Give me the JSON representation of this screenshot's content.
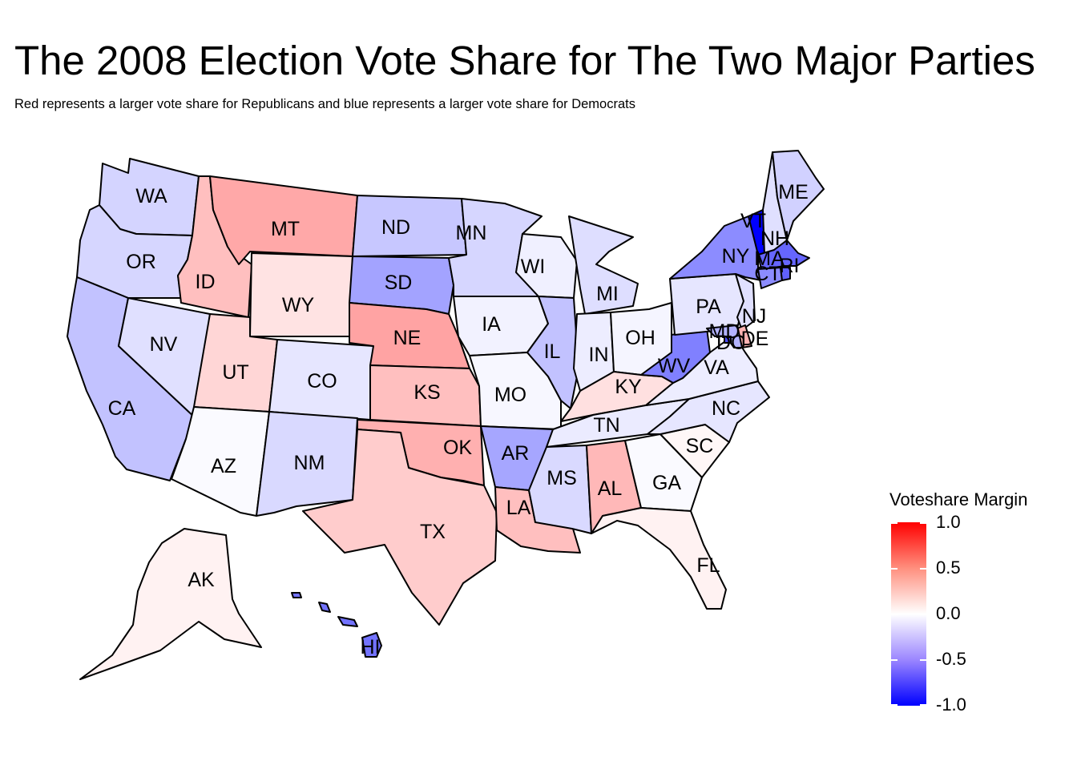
{
  "title": "The 2008 Election Vote Share for The Two Major Parties",
  "subtitle": "Red represents a larger vote share for Republicans and blue represents a larger vote share for Democrats",
  "legend": {
    "title": "Voteshare Margin",
    "ticks": [
      "1.0",
      "0.5",
      "0.0",
      "-0.5",
      "-1.0"
    ],
    "colors": {
      "high": "#ff0000",
      "mid": "#ffffff",
      "low": "#0000ff"
    }
  },
  "states": [
    {
      "abbr": "WA",
      "margin": -0.17
    },
    {
      "abbr": "OR",
      "margin": -0.16
    },
    {
      "abbr": "CA",
      "margin": -0.24
    },
    {
      "abbr": "NV",
      "margin": -0.12
    },
    {
      "abbr": "ID",
      "margin": 0.25
    },
    {
      "abbr": "MT",
      "margin": 0.34
    },
    {
      "abbr": "WY",
      "margin": 0.11
    },
    {
      "abbr": "UT",
      "margin": 0.16
    },
    {
      "abbr": "AZ",
      "margin": -0.02
    },
    {
      "abbr": "CO",
      "margin": -0.1
    },
    {
      "abbr": "NM",
      "margin": -0.15
    },
    {
      "abbr": "ND",
      "margin": -0.22
    },
    {
      "abbr": "SD",
      "margin": -0.36
    },
    {
      "abbr": "NE",
      "margin": 0.36
    },
    {
      "abbr": "KS",
      "margin": 0.25
    },
    {
      "abbr": "OK",
      "margin": 0.31
    },
    {
      "abbr": "TX",
      "margin": 0.2
    },
    {
      "abbr": "MN",
      "margin": -0.16
    },
    {
      "abbr": "IA",
      "margin": -0.05
    },
    {
      "abbr": "MO",
      "margin": -0.03
    },
    {
      "abbr": "AR",
      "margin": -0.35
    },
    {
      "abbr": "LA",
      "margin": 0.25
    },
    {
      "abbr": "WI",
      "margin": -0.06
    },
    {
      "abbr": "IL",
      "margin": -0.24
    },
    {
      "abbr": "MI",
      "margin": -0.13
    },
    {
      "abbr": "IN",
      "margin": -0.07
    },
    {
      "abbr": "OH",
      "margin": -0.04
    },
    {
      "abbr": "KY",
      "margin": 0.12
    },
    {
      "abbr": "TN",
      "margin": -0.08
    },
    {
      "abbr": "MS",
      "margin": -0.15
    },
    {
      "abbr": "AL",
      "margin": 0.28
    },
    {
      "abbr": "GA",
      "margin": -0.02
    },
    {
      "abbr": "FL",
      "margin": 0.05
    },
    {
      "abbr": "SC",
      "margin": 0.03
    },
    {
      "abbr": "NC",
      "margin": -0.1
    },
    {
      "abbr": "VA",
      "margin": -0.07
    },
    {
      "abbr": "WV",
      "margin": -0.5
    },
    {
      "abbr": "PA",
      "margin": -0.1
    },
    {
      "abbr": "NY",
      "margin": -0.45
    },
    {
      "abbr": "VT",
      "margin": -1.0
    },
    {
      "abbr": "NH",
      "margin": -0.12
    },
    {
      "abbr": "ME",
      "margin": -0.18
    },
    {
      "abbr": "MA",
      "margin": -0.6
    },
    {
      "abbr": "CT",
      "margin": -0.45
    },
    {
      "abbr": "RI",
      "margin": -0.62
    },
    {
      "abbr": "NJ",
      "margin": -0.12
    },
    {
      "abbr": "DE",
      "margin": 0.3
    },
    {
      "abbr": "MD",
      "margin": -0.3
    },
    {
      "abbr": "DC",
      "margin": -0.7
    },
    {
      "abbr": "AK",
      "margin": 0.05
    },
    {
      "abbr": "HI",
      "margin": -0.55
    }
  ]
}
